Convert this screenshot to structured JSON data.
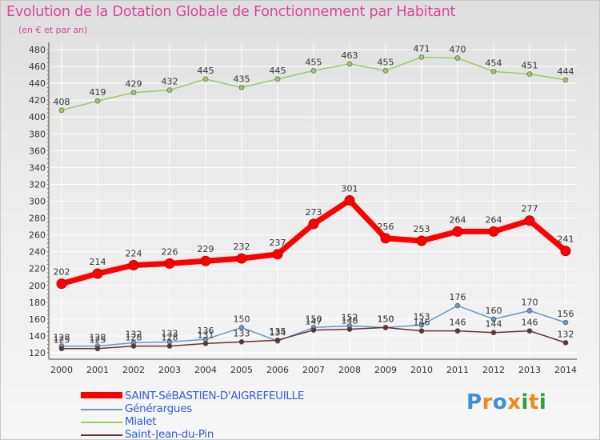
{
  "chart_data": {
    "type": "line",
    "title": "Evolution de la Dotation Globale de Fonctionnement par Habitant",
    "subtitle": "(en € et par an)",
    "xlabel": "",
    "ylabel": "",
    "ylim": [
      120,
      480
    ],
    "yticks": [
      120,
      140,
      160,
      180,
      200,
      220,
      240,
      260,
      280,
      300,
      320,
      340,
      360,
      380,
      400,
      420,
      440,
      460,
      480
    ],
    "x": [
      2000,
      2001,
      2002,
      2003,
      2004,
      2005,
      2006,
      2007,
      2008,
      2009,
      2010,
      2011,
      2012,
      2013,
      2014
    ],
    "grid": true,
    "legend_position": "bottom-left",
    "series": [
      {
        "name": "Mialet",
        "color": "#99cc66",
        "values": [
          408,
          419,
          429,
          432,
          445,
          435,
          445,
          455,
          463,
          455,
          471,
          470,
          454,
          451,
          444
        ]
      },
      {
        "name": "Générargues",
        "color": "#6699cc",
        "values": [
          128,
          128,
          132,
          133,
          136,
          150,
          134,
          150,
          152,
          150,
          153,
          176,
          160,
          170,
          156
        ]
      },
      {
        "name": "Saint-Jean-du-Pin",
        "color": "#663333",
        "values": [
          125,
          125,
          128,
          128,
          131,
          133,
          135,
          147,
          148,
          150,
          146,
          146,
          144,
          146,
          132
        ]
      },
      {
        "name": "SAINT-SéBASTIEN-D'AIGREFEUILLE",
        "color": "#ff0000",
        "values": [
          202,
          214,
          224,
          226,
          229,
          232,
          237,
          273,
          301,
          256,
          253,
          264,
          264,
          277,
          241
        ]
      }
    ]
  },
  "legend": [
    {
      "name": "SAINT-SéBASTIEN-D'AIGREFEUILLE",
      "color": "#ff0000"
    },
    {
      "name": "Générargues",
      "color": "#6699cc"
    },
    {
      "name": "Mialet",
      "color": "#99cc66"
    },
    {
      "name": "Saint-Jean-du-Pin",
      "color": "#663333"
    }
  ],
  "brand": {
    "letters": [
      "P",
      "r",
      "o",
      "x",
      "i",
      "t",
      "i"
    ],
    "colors": [
      "#3a8fd6",
      "#f08a1c",
      "#3a8fd6",
      "#f08a1c",
      "#2e9f3a",
      "#f08a1c",
      "#2e9f3a"
    ]
  }
}
